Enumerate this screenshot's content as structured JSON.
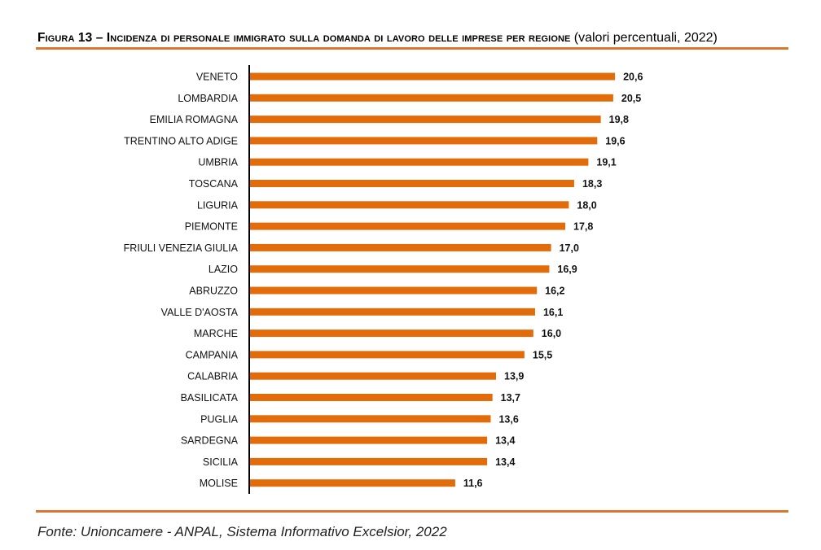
{
  "header": {
    "title_main": "Figura 13 – Incidenza di personale immigrato sulla domanda di lavoro delle imprese per regione",
    "title_sub": "(valori percentuali, 2022)"
  },
  "footer": {
    "source": "Fonte: Unioncamere - ANPAL, Sistema Informativo Excelsior, 2022"
  },
  "colors": {
    "bar": "#e36c0a",
    "rule": "#d9782f",
    "axis": "#000000"
  },
  "chart_data": {
    "type": "bar",
    "orientation": "horizontal",
    "title": "Figura 13 – Incidenza di personale immigrato sulla domanda di lavoro delle imprese per regione (valori percentuali, 2022)",
    "xlabel": "",
    "ylabel": "",
    "xlim": [
      0,
      21
    ],
    "grid": false,
    "legend": "none",
    "decimal_separator": ",",
    "categories": [
      "VENETO",
      "LOMBARDIA",
      "EMILIA ROMAGNA",
      "TRENTINO ALTO ADIGE",
      "UMBRIA",
      "TOSCANA",
      "LIGURIA",
      "PIEMONTE",
      "FRIULI VENEZIA GIULIA",
      "LAZIO",
      "ABRUZZO",
      "VALLE D'AOSTA",
      "MARCHE",
      "CAMPANIA",
      "CALABRIA",
      "BASILICATA",
      "PUGLIA",
      "SARDEGNA",
      "SICILIA",
      "MOLISE"
    ],
    "values": [
      20.6,
      20.5,
      19.8,
      19.6,
      19.1,
      18.3,
      18.0,
      17.8,
      17.0,
      16.9,
      16.2,
      16.1,
      16.0,
      15.5,
      13.9,
      13.7,
      13.6,
      13.4,
      13.4,
      11.6
    ],
    "data_labels": [
      "20,6",
      "20,5",
      "19,8",
      "19,6",
      "19,1",
      "18,3",
      "18,0",
      "17,8",
      "17,0",
      "16,9",
      "16,2",
      "16,1",
      "16,0",
      "15,5",
      "13,9",
      "13,7",
      "13,6",
      "13,4",
      "13,4",
      "11,6"
    ]
  }
}
